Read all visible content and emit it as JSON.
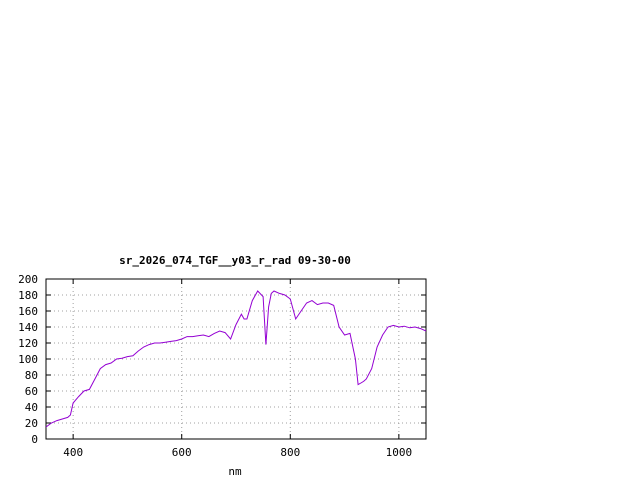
{
  "chart_data": {
    "type": "line",
    "title": "sr_2026_074_TGF__y03_r_rad 09-30-00",
    "xlabel": "nm",
    "ylabel": "",
    "xlim": [
      350,
      1050
    ],
    "ylim": [
      0,
      200
    ],
    "xticks": [
      400,
      600,
      800,
      1000
    ],
    "yticks": [
      0,
      20,
      40,
      60,
      80,
      100,
      120,
      140,
      160,
      180,
      200
    ],
    "grid": true,
    "line_color": "#9400d3",
    "series": [
      {
        "x": [
          350,
          360,
          370,
          380,
          390,
          395,
          400,
          410,
          420,
          430,
          440,
          450,
          460,
          470,
          480,
          490,
          500,
          510,
          520,
          530,
          540,
          550,
          560,
          570,
          580,
          590,
          600,
          610,
          620,
          630,
          640,
          650,
          660,
          670,
          680,
          690,
          700,
          710,
          715,
          720,
          730,
          740,
          750,
          755,
          760,
          765,
          770,
          780,
          790,
          800,
          810,
          820,
          830,
          840,
          850,
          860,
          870,
          880,
          890,
          900,
          910,
          920,
          925,
          930,
          935,
          940,
          950,
          960,
          970,
          980,
          990,
          1000,
          1010,
          1020,
          1030,
          1040,
          1050
        ],
        "y": [
          15,
          20,
          23,
          25,
          27,
          30,
          45,
          53,
          60,
          62,
          75,
          88,
          93,
          95,
          100,
          101,
          103,
          104,
          110,
          115,
          118,
          120,
          120,
          121,
          122,
          123,
          125,
          128,
          128,
          129,
          130,
          128,
          132,
          135,
          133,
          125,
          143,
          156,
          150,
          150,
          173,
          185,
          178,
          118,
          165,
          182,
          185,
          182,
          180,
          175,
          150,
          160,
          170,
          173,
          168,
          170,
          170,
          167,
          140,
          130,
          132,
          100,
          68,
          70,
          72,
          75,
          88,
          115,
          130,
          140,
          142,
          140,
          141,
          139,
          140,
          138,
          135
        ]
      }
    ]
  }
}
